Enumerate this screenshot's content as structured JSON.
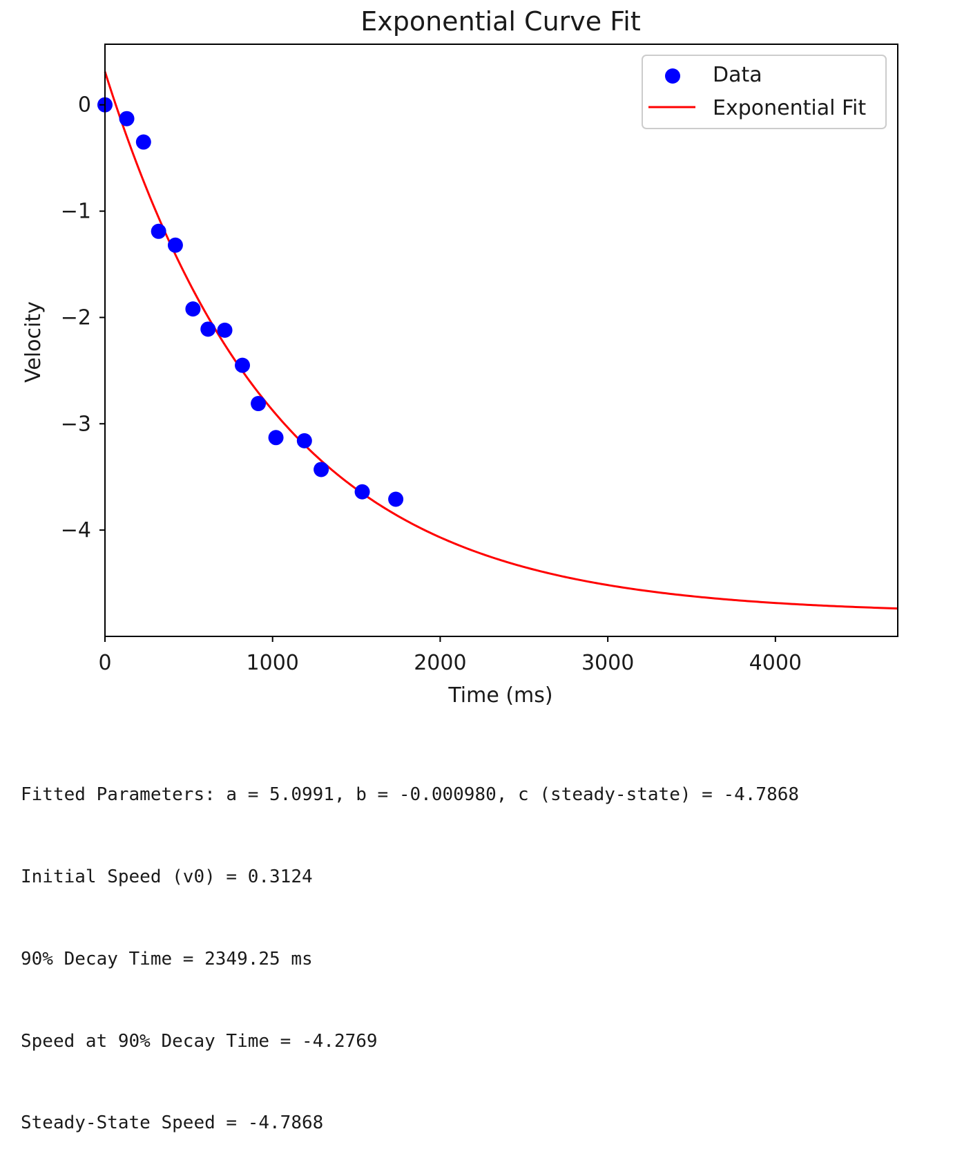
{
  "chart_data": {
    "type": "scatter",
    "title": "Exponential Curve Fit",
    "xlabel": "Time (ms)",
    "ylabel": "Velocity",
    "xlim": [
      0,
      4730
    ],
    "ylim": [
      -5.0,
      0.57
    ],
    "xticks": [
      0,
      1000,
      2000,
      3000,
      4000
    ],
    "xtick_labels": [
      "0",
      "1000",
      "2000",
      "3000",
      "4000"
    ],
    "yticks": [
      0,
      -1,
      -2,
      -3,
      -4
    ],
    "ytick_labels": [
      "0",
      "−1",
      "−2",
      "−3",
      "−4"
    ],
    "grid": false,
    "legend": {
      "location": "upper right",
      "entries": [
        "Data",
        "Exponential Fit"
      ]
    },
    "series": [
      {
        "name": "Data",
        "kind": "scatter",
        "color": "#0000ff",
        "x": [
          0,
          130,
          230,
          320,
          420,
          525,
          615,
          715,
          820,
          915,
          1020,
          1190,
          1290,
          1535,
          1735
        ],
        "y": [
          0.0,
          -0.13,
          -0.35,
          -1.19,
          -1.32,
          -1.92,
          -2.11,
          -2.12,
          -2.45,
          -2.81,
          -3.13,
          -3.16,
          -3.43,
          -3.64,
          -3.71
        ]
      },
      {
        "name": "Exponential Fit",
        "kind": "line",
        "color": "#ff0000",
        "model": "y = a*exp(b*x) + c",
        "a": 5.0991,
        "b": -0.00098,
        "c": -4.7868,
        "x_range": [
          0,
          4730
        ]
      }
    ]
  },
  "output_lines": [
    "Fitted Parameters: a = 5.0991, b = -0.000980, c (steady-state) = -4.7868",
    "Initial Speed (v0) = 0.3124",
    "90% Decay Time = 2349.25 ms",
    "Speed at 90% Decay Time = -4.2769",
    "Steady-State Speed = -4.7868"
  ]
}
